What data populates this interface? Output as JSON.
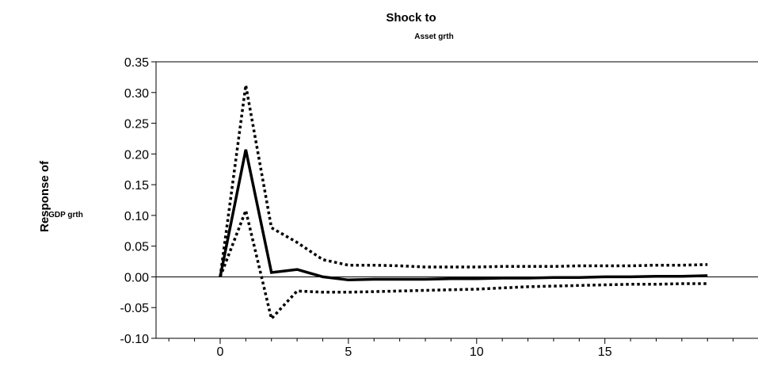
{
  "chart_data": {
    "type": "line",
    "title": "Shock to",
    "subtitle": "Asset grth",
    "ylabel": "Response of",
    "ylabel_sub": "GDP grth",
    "xlabel": "",
    "xlim": [
      -2.5,
      21
    ],
    "ylim": [
      -0.1,
      0.35
    ],
    "xticks": [
      0,
      5,
      10,
      15
    ],
    "xtick_labels": [
      "0",
      "5",
      "10",
      "15"
    ],
    "yticks": [
      0.35,
      0.3,
      0.25,
      0.2,
      0.15,
      0.1,
      0.05,
      0.0,
      -0.05,
      -0.1
    ],
    "ytick_labels": [
      "0.35",
      "0.30",
      "0.25",
      "0.20",
      "0.15",
      "0.10",
      "0.05",
      "0.00",
      "-0.05",
      "-0.10"
    ],
    "zero_line": true,
    "grid": false,
    "x": [
      0,
      1,
      2,
      3,
      4,
      5,
      6,
      7,
      8,
      9,
      10,
      11,
      12,
      13,
      14,
      15,
      16,
      17,
      18,
      19
    ],
    "series": [
      {
        "style": "solid",
        "values": [
          0.0,
          0.207,
          0.007,
          0.012,
          0.0,
          -0.005,
          -0.004,
          -0.004,
          -0.004,
          -0.003,
          -0.003,
          -0.002,
          -0.002,
          -0.001,
          -0.001,
          0.0,
          0.0,
          0.001,
          0.001,
          0.002
        ]
      },
      {
        "style": "dotted",
        "values": [
          0.0,
          0.312,
          0.08,
          0.056,
          0.028,
          0.019,
          0.019,
          0.018,
          0.016,
          0.016,
          0.016,
          0.017,
          0.017,
          0.017,
          0.018,
          0.018,
          0.018,
          0.019,
          0.019,
          0.02
        ]
      },
      {
        "style": "dotted",
        "values": [
          0.0,
          0.108,
          -0.068,
          -0.023,
          -0.025,
          -0.025,
          -0.024,
          -0.023,
          -0.022,
          -0.021,
          -0.02,
          -0.018,
          -0.016,
          -0.015,
          -0.014,
          -0.013,
          -0.012,
          -0.012,
          -0.011,
          -0.011
        ]
      }
    ],
    "colors": {
      "lines": "#000000",
      "axes": "#000000",
      "background": "#ffffff"
    }
  }
}
